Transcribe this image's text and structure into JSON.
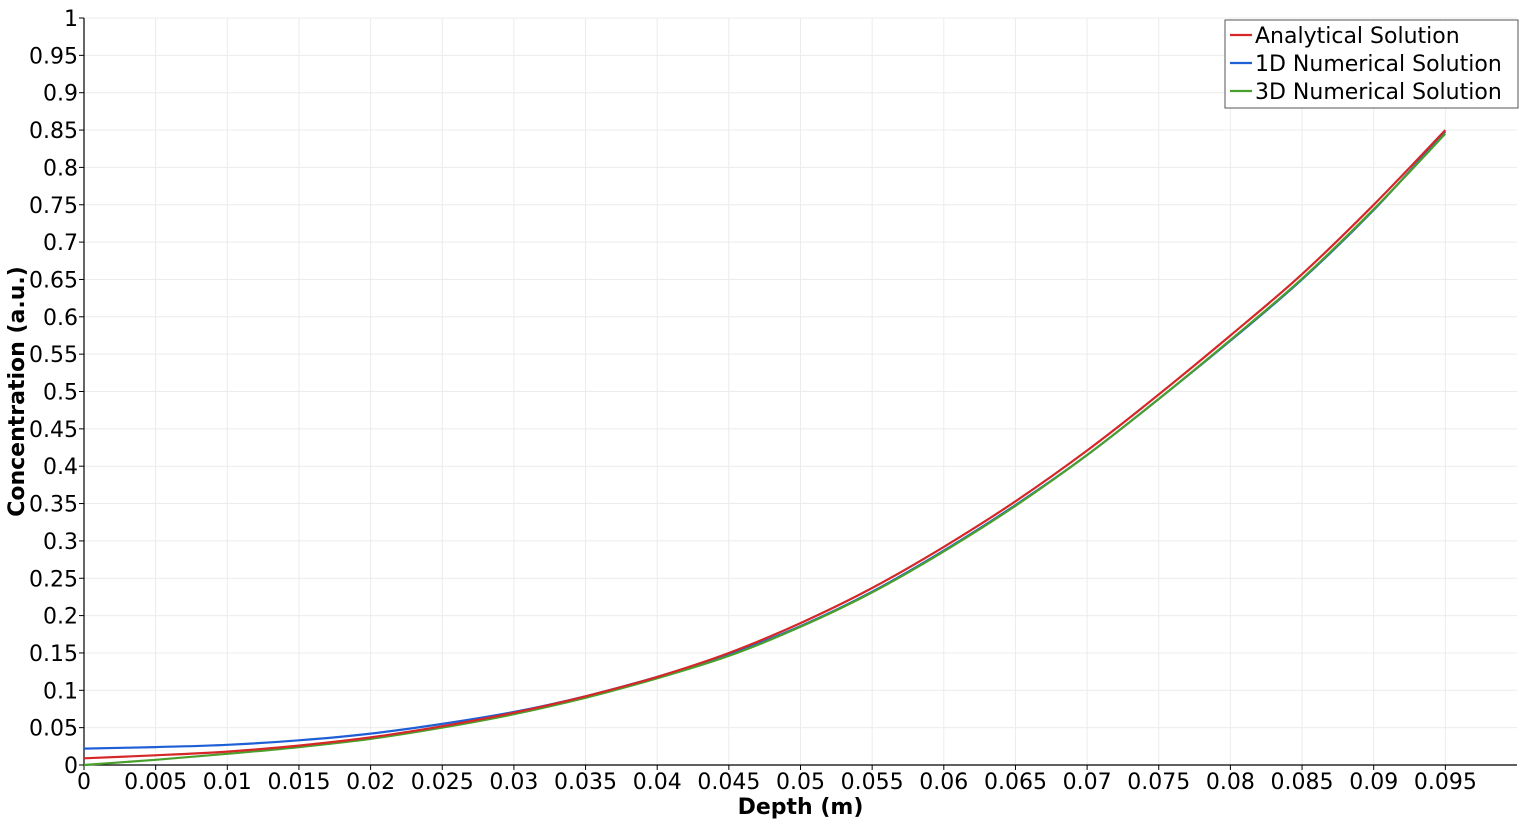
{
  "chart_data": {
    "type": "line",
    "title": "",
    "xlabel": "Depth (m)",
    "ylabel": "Concentration (a.u.)",
    "xlim": [
      0,
      0.1
    ],
    "ylim": [
      0,
      1
    ],
    "x_ticks": [
      "0",
      "0.005",
      "0.01",
      "0.015",
      "0.02",
      "0.025",
      "0.03",
      "0.035",
      "0.04",
      "0.045",
      "0.05",
      "0.055",
      "0.06",
      "0.065",
      "0.07",
      "0.075",
      "0.08",
      "0.085",
      "0.09",
      "0.095"
    ],
    "y_ticks": [
      "0",
      "0.05",
      "0.1",
      "0.15",
      "0.2",
      "0.25",
      "0.3",
      "0.35",
      "0.4",
      "0.45",
      "0.5",
      "0.55",
      "0.6",
      "0.65",
      "0.7",
      "0.75",
      "0.8",
      "0.85",
      "0.9",
      "0.95",
      "1"
    ],
    "grid": true,
    "legend_position": "top-right",
    "x": [
      0,
      0.005,
      0.01,
      0.015,
      0.02,
      0.025,
      0.03,
      0.035,
      0.04,
      0.045,
      0.05,
      0.055,
      0.06,
      0.065,
      0.07,
      0.075,
      0.08,
      0.085,
      0.09,
      0.095
    ],
    "series": [
      {
        "name": "Analytical Solution",
        "color": "#d62728",
        "values": [
          0.009,
          0.013,
          0.018,
          0.026,
          0.037,
          0.052,
          0.07,
          0.092,
          0.118,
          0.15,
          0.19,
          0.237,
          0.292,
          0.353,
          0.421,
          0.496,
          0.575,
          0.657,
          0.75,
          0.85
        ]
      },
      {
        "name": "1D Numerical Solution",
        "color": "#1f5fd6",
        "values": [
          0.022,
          0.024,
          0.027,
          0.033,
          0.042,
          0.055,
          0.071,
          0.092,
          0.118,
          0.148,
          0.186,
          0.232,
          0.287,
          0.348,
          0.415,
          0.49,
          0.568,
          0.65,
          0.743,
          0.848
        ]
      },
      {
        "name": "3D Numerical Solution",
        "color": "#4aa02c",
        "values": [
          0.0,
          0.007,
          0.015,
          0.024,
          0.035,
          0.05,
          0.068,
          0.09,
          0.116,
          0.146,
          0.185,
          0.231,
          0.286,
          0.347,
          0.415,
          0.49,
          0.569,
          0.651,
          0.744,
          0.845
        ]
      }
    ]
  }
}
